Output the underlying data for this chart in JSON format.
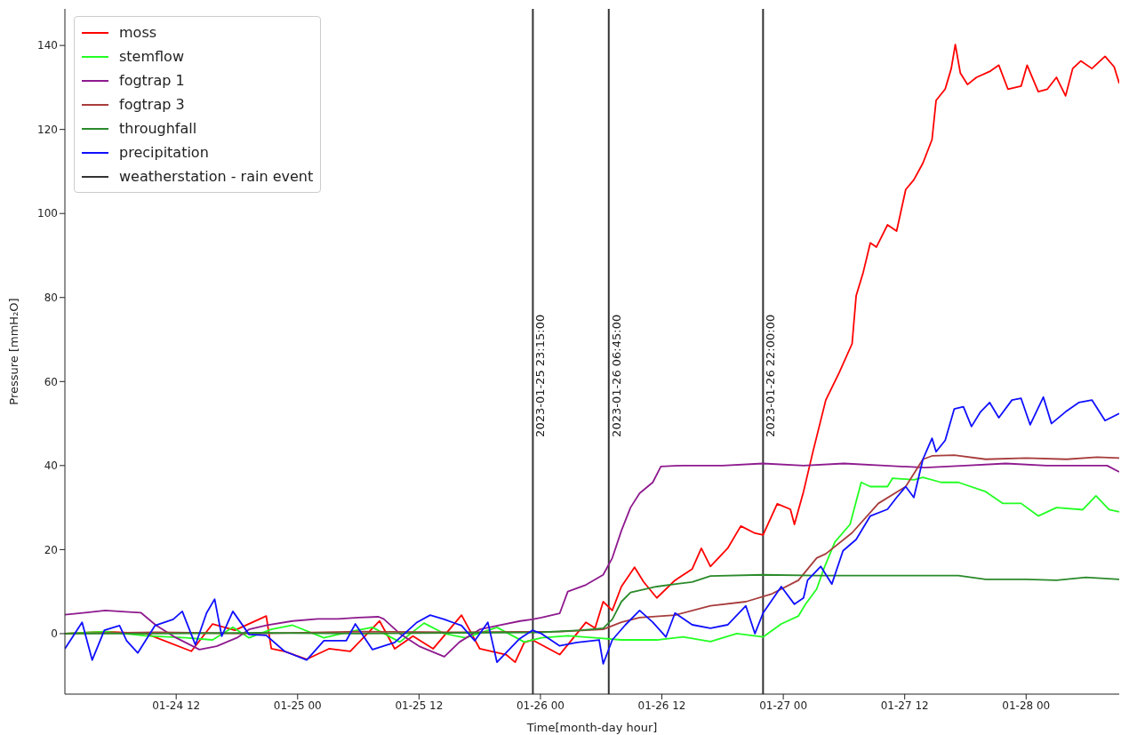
{
  "chart_data": {
    "type": "line",
    "xlabel": "Time[month-day hour]",
    "ylabel": "Pressure [mmH₂O]",
    "xlim": [
      "2023-01-24T01:00",
      "2023-01-28T09:12"
    ],
    "xticks": [
      {
        "value": "2023-01-24T12:00",
        "label": "01-24 12"
      },
      {
        "value": "2023-01-25T00:00",
        "label": "01-25 00"
      },
      {
        "value": "2023-01-25T12:00",
        "label": "01-25 12"
      },
      {
        "value": "2023-01-26T00:00",
        "label": "01-26 00"
      },
      {
        "value": "2023-01-26T12:00",
        "label": "01-26 12"
      },
      {
        "value": "2023-01-27T00:00",
        "label": "01-27 00"
      },
      {
        "value": "2023-01-27T12:00",
        "label": "01-27 12"
      },
      {
        "value": "2023-01-28T00:00",
        "label": "01-28 00"
      }
    ],
    "ylim": [
      -14.4,
      148.7
    ],
    "yticks": [
      0,
      20,
      40,
      60,
      80,
      100,
      120,
      140
    ],
    "legend": "top left",
    "marker": "none",
    "line_style": "solid",
    "series": [
      {
        "name": "moss",
        "color": "#ff0000",
        "x": [
          "2023-01-24T01:00",
          "2023-01-24T05:00",
          "2023-01-24T09:00",
          "2023-01-24T13:30",
          "2023-01-24T15:36",
          "2023-01-24T17:48",
          "2023-01-24T20:54",
          "2023-01-24T21:24",
          "2023-01-24T22:42",
          "2023-01-25T00:54",
          "2023-01-25T03:06",
          "2023-01-25T05:12",
          "2023-01-25T08:06",
          "2023-01-25T09:36",
          "2023-01-25T11:24",
          "2023-01-25T13:24",
          "2023-01-25T16:12",
          "2023-01-25T18:00",
          "2023-01-25T20:36",
          "2023-01-25T21:30",
          "2023-01-25T22:24",
          "2023-01-25T23:12",
          "2023-01-26T01:54",
          "2023-01-26T03:36",
          "2023-01-26T04:30",
          "2023-01-26T05:24",
          "2023-01-26T06:12",
          "2023-01-26T07:06",
          "2023-01-26T08:00",
          "2023-01-26T09:18",
          "2023-01-26T10:12",
          "2023-01-26T11:30",
          "2023-01-26T13:18",
          "2023-01-26T15:00",
          "2023-01-26T15:54",
          "2023-01-26T16:48",
          "2023-01-26T18:30",
          "2023-01-26T19:48",
          "2023-01-26T21:12",
          "2023-01-26T22:00",
          "2023-01-26T23:24",
          "2023-01-27T00:42",
          "2023-01-27T01:06",
          "2023-01-27T02:00",
          "2023-01-27T02:54",
          "2023-01-27T04:12",
          "2023-01-27T05:30",
          "2023-01-27T06:48",
          "2023-01-27T07:12",
          "2023-01-27T07:54",
          "2023-01-27T08:36",
          "2023-01-27T09:12",
          "2023-01-27T10:18",
          "2023-01-27T11:12",
          "2023-01-27T12:06",
          "2023-01-27T12:54",
          "2023-01-27T13:48",
          "2023-01-27T14:42",
          "2023-01-27T15:06",
          "2023-01-27T16:00",
          "2023-01-27T16:36",
          "2023-01-27T17:00",
          "2023-01-27T17:30",
          "2023-01-27T18:12",
          "2023-01-27T19:06",
          "2023-01-27T20:24",
          "2023-01-27T21:18",
          "2023-01-27T22:12",
          "2023-01-27T23:30",
          "2023-01-28T00:06",
          "2023-01-28T01:12",
          "2023-01-28T02:06",
          "2023-01-28T03:00",
          "2023-01-28T03:54",
          "2023-01-28T04:36",
          "2023-01-28T05:24",
          "2023-01-28T06:30",
          "2023-01-28T07:48",
          "2023-01-28T08:42",
          "2023-01-28T09:12"
        ],
        "values": [
          0,
          0.5,
          0,
          -4.2,
          2.3,
          0.8,
          4.2,
          -3.6,
          -4.2,
          -6.1,
          -3.6,
          -4.2,
          3,
          -3.6,
          -0.6,
          -3.6,
          4.4,
          -3.6,
          -5,
          -6.8,
          -2.1,
          -1.5,
          -5,
          0,
          2.7,
          1.3,
          7.6,
          5.5,
          11.2,
          15.8,
          12.3,
          8.5,
          12.7,
          15.4,
          20.3,
          16,
          20.3,
          25.6,
          23.9,
          23.5,
          30.9,
          29.6,
          26,
          33.8,
          43,
          55.6,
          62,
          69,
          80.4,
          86,
          93,
          92,
          97.3,
          95.8,
          105.7,
          108,
          112,
          117.6,
          126.9,
          129.6,
          134.5,
          140.2,
          133.4,
          130.7,
          132.4,
          133.8,
          135.3,
          129.6,
          130.3,
          135.3,
          129,
          129.6,
          132.4,
          128,
          134.5,
          136.3,
          134.5,
          137.4,
          134.9,
          131
        ]
      },
      {
        "name": "stemflow",
        "color": "#22ff22",
        "x": [
          "2023-01-24T01:00",
          "2023-01-24T05:00",
          "2023-01-24T09:00",
          "2023-01-24T13:00",
          "2023-01-24T15:36",
          "2023-01-24T17:36",
          "2023-01-24T19:12",
          "2023-01-24T21:24",
          "2023-01-24T23:30",
          "2023-01-25T02:36",
          "2023-01-25T05:12",
          "2023-01-25T07:24",
          "2023-01-25T10:06",
          "2023-01-25T12:30",
          "2023-01-25T14:30",
          "2023-01-25T16:36",
          "2023-01-25T19:42",
          "2023-01-25T22:24",
          "2023-01-26T00:06",
          "2023-01-26T02:42",
          "2023-01-26T05:24",
          "2023-01-26T08:00",
          "2023-01-26T11:30",
          "2023-01-26T14:06",
          "2023-01-26T16:48",
          "2023-01-26T19:24",
          "2023-01-26T22:00",
          "2023-01-26T23:48",
          "2023-01-27T01:30",
          "2023-01-27T02:12",
          "2023-01-27T03:18",
          "2023-01-27T04:00",
          "2023-01-27T05:06",
          "2023-01-27T06:36",
          "2023-01-27T07:42",
          "2023-01-27T08:36",
          "2023-01-27T10:18",
          "2023-01-27T10:48",
          "2023-01-27T12:54",
          "2023-01-27T13:48",
          "2023-01-27T15:36",
          "2023-01-27T17:18",
          "2023-01-27T20:00",
          "2023-01-27T21:42",
          "2023-01-27T23:30",
          "2023-01-28T01:12",
          "2023-01-28T03:00",
          "2023-01-28T05:36",
          "2023-01-28T06:54",
          "2023-01-28T08:12",
          "2023-01-28T09:12"
        ],
        "values": [
          0,
          0.5,
          -0.5,
          -1,
          -1.5,
          1.5,
          -1,
          1,
          2,
          -1,
          0.5,
          1.5,
          -2,
          2.5,
          0,
          -1,
          1.5,
          -2,
          -1,
          -0.5,
          -1,
          -1.5,
          -1.5,
          -0.8,
          -1.9,
          0,
          -0.8,
          2.3,
          4.2,
          7,
          10.6,
          15.4,
          21.8,
          26,
          36,
          35,
          35,
          37,
          36.6,
          37.2,
          36,
          36,
          33.8,
          31,
          31,
          28,
          30,
          29.5,
          32.8,
          29.5,
          29
        ]
      },
      {
        "name": "fogtrap 1",
        "color": "#8e1a8e",
        "x": [
          "2023-01-24T01:00",
          "2023-01-24T03:00",
          "2023-01-24T05:00",
          "2023-01-24T07:00",
          "2023-01-24T08:30",
          "2023-01-24T10:00",
          "2023-01-24T12:00",
          "2023-01-24T14:18",
          "2023-01-24T16:00",
          "2023-01-24T18:00",
          "2023-01-24T19:12",
          "2023-01-24T21:00",
          "2023-01-24T23:30",
          "2023-01-25T02:00",
          "2023-01-25T04:00",
          "2023-01-25T06:00",
          "2023-01-25T08:00",
          "2023-01-25T08:30",
          "2023-01-25T10:06",
          "2023-01-25T12:00",
          "2023-01-25T14:30",
          "2023-01-25T16:00",
          "2023-01-25T18:00",
          "2023-01-25T20:00",
          "2023-01-25T22:00",
          "2023-01-25T23:12",
          "2023-01-26T00:06",
          "2023-01-26T01:54",
          "2023-01-26T02:42",
          "2023-01-26T04:30",
          "2023-01-26T06:12",
          "2023-01-26T07:06",
          "2023-01-26T08:00",
          "2023-01-26T08:54",
          "2023-01-26T09:48",
          "2023-01-26T11:06",
          "2023-01-26T11:54",
          "2023-01-26T14:00",
          "2023-01-26T18:00",
          "2023-01-26T22:00",
          "2023-01-27T02:00",
          "2023-01-27T06:00",
          "2023-01-27T10:00",
          "2023-01-27T14:00",
          "2023-01-27T18:00",
          "2023-01-27T22:00",
          "2023-01-28T02:00",
          "2023-01-28T06:00",
          "2023-01-28T08:00",
          "2023-01-28T09:12"
        ],
        "values": [
          4.5,
          5,
          5.5,
          5.2,
          5,
          2,
          -1,
          -3.8,
          -3,
          -1,
          1,
          2,
          3,
          3.5,
          3.5,
          3.8,
          4,
          3.5,
          0,
          -3,
          -5.5,
          -2,
          1,
          2,
          3,
          3.4,
          3.8,
          4.8,
          10,
          11.6,
          14,
          18,
          24.5,
          30,
          33.4,
          36,
          39.8,
          40,
          40,
          40.5,
          40,
          40.5,
          40,
          39.5,
          40,
          40.5,
          40,
          40,
          40,
          38.5
        ]
      },
      {
        "name": "fogtrap 3",
        "color": "#a83c3c",
        "x": [
          "2023-01-24T01:00",
          "2023-01-24T10:00",
          "2023-01-24T20:00",
          "2023-01-25T06:00",
          "2023-01-25T16:00",
          "2023-01-26T02:00",
          "2023-01-26T06:12",
          "2023-01-26T08:00",
          "2023-01-26T09:48",
          "2023-01-26T13:18",
          "2023-01-26T16:48",
          "2023-01-26T20:18",
          "2023-01-26T22:54",
          "2023-01-27T01:30",
          "2023-01-27T03:18",
          "2023-01-27T04:12",
          "2023-01-27T06:48",
          "2023-01-27T09:24",
          "2023-01-27T12:06",
          "2023-01-27T13:48",
          "2023-01-27T14:42",
          "2023-01-27T16:54",
          "2023-01-27T20:00",
          "2023-01-28T00:00",
          "2023-01-28T04:00",
          "2023-01-28T07:00",
          "2023-01-28T09:12"
        ],
        "values": [
          0,
          0.3,
          0,
          0.5,
          0.3,
          0.5,
          1,
          2.7,
          3.8,
          4.4,
          6.6,
          7.6,
          9.5,
          12.7,
          18,
          19,
          24,
          31,
          35,
          41.5,
          42.3,
          42.5,
          41.5,
          41.8,
          41.5,
          42,
          41.8
        ]
      },
      {
        "name": "throughfall",
        "color": "#2a8a2a",
        "x": [
          "2023-01-24T01:00",
          "2023-01-24T10:00",
          "2023-01-24T20:00",
          "2023-01-25T06:00",
          "2023-01-25T16:00",
          "2023-01-26T00:00",
          "2023-01-26T04:00",
          "2023-01-26T06:12",
          "2023-01-26T07:06",
          "2023-01-26T08:00",
          "2023-01-26T08:54",
          "2023-01-26T11:30",
          "2023-01-26T15:00",
          "2023-01-26T16:48",
          "2023-01-26T22:00",
          "2023-01-27T03:18",
          "2023-01-27T08:00",
          "2023-01-27T13:00",
          "2023-01-27T17:18",
          "2023-01-27T20:00",
          "2023-01-28T00:00",
          "2023-01-28T03:00",
          "2023-01-28T05:54",
          "2023-01-28T09:12"
        ],
        "values": [
          0,
          0,
          0.2,
          0,
          0.2,
          0.3,
          0.8,
          1.3,
          3.4,
          7.6,
          9.8,
          11.2,
          12.3,
          13.7,
          14,
          13.8,
          13.8,
          13.8,
          13.8,
          12.9,
          12.9,
          12.7,
          13.4,
          12.9
        ]
      },
      {
        "name": "precipitation",
        "color": "#1010ff",
        "x": [
          "2023-01-24T01:00",
          "2023-01-24T02:42",
          "2023-01-24T03:42",
          "2023-01-24T04:54",
          "2023-01-24T06:24",
          "2023-01-24T07:06",
          "2023-01-24T08:12",
          "2023-01-24T09:54",
          "2023-01-24T11:42",
          "2023-01-24T12:36",
          "2023-01-24T13:54",
          "2023-01-24T15:00",
          "2023-01-24T15:48",
          "2023-01-24T16:30",
          "2023-01-24T17:36",
          "2023-01-24T19:12",
          "2023-01-24T20:54",
          "2023-01-24T22:42",
          "2023-01-25T00:54",
          "2023-01-25T02:36",
          "2023-01-25T04:48",
          "2023-01-25T05:42",
          "2023-01-25T07:24",
          "2023-01-25T09:36",
          "2023-01-25T11:48",
          "2023-01-25T13:06",
          "2023-01-25T14:30",
          "2023-01-25T16:12",
          "2023-01-25T17:30",
          "2023-01-25T18:48",
          "2023-01-25T19:42",
          "2023-01-25T21:54",
          "2023-01-25T23:12",
          "2023-01-26T00:06",
          "2023-01-26T01:54",
          "2023-01-26T03:36",
          "2023-01-26T05:48",
          "2023-01-26T06:12",
          "2023-01-26T07:06",
          "2023-01-26T08:24",
          "2023-01-26T09:48",
          "2023-01-26T11:06",
          "2023-01-26T12:24",
          "2023-01-26T13:18",
          "2023-01-26T15:00",
          "2023-01-26T16:48",
          "2023-01-26T18:30",
          "2023-01-26T20:18",
          "2023-01-26T21:12",
          "2023-01-26T22:00",
          "2023-01-26T23:48",
          "2023-01-27T01:06",
          "2023-01-27T02:00",
          "2023-01-27T02:24",
          "2023-01-27T03:42",
          "2023-01-27T04:48",
          "2023-01-27T05:54",
          "2023-01-27T07:12",
          "2023-01-27T08:36",
          "2023-01-27T10:18",
          "2023-01-27T11:12",
          "2023-01-27T12:06",
          "2023-01-27T12:54",
          "2023-01-27T13:48",
          "2023-01-27T14:42",
          "2023-01-27T15:06",
          "2023-01-27T16:00",
          "2023-01-27T16:54",
          "2023-01-27T17:48",
          "2023-01-27T18:36",
          "2023-01-27T19:30",
          "2023-01-27T20:24",
          "2023-01-27T21:18",
          "2023-01-27T22:36",
          "2023-01-27T23:30",
          "2023-01-28T00:24",
          "2023-01-28T01:42",
          "2023-01-28T02:30",
          "2023-01-28T03:54",
          "2023-01-28T05:12",
          "2023-01-28T06:30",
          "2023-01-28T07:48",
          "2023-01-28T09:12"
        ],
        "values": [
          -3.6,
          2.7,
          -6.3,
          0.8,
          1.9,
          -1.7,
          -4.6,
          1.9,
          3.4,
          5.3,
          -2.7,
          4.9,
          8.2,
          -0.6,
          5.3,
          -0.2,
          -0.4,
          -4.2,
          -6.3,
          -1.7,
          -1.7,
          2.3,
          -3.8,
          -2.1,
          2.7,
          4.4,
          3.4,
          1.9,
          -1.7,
          2.7,
          -6.8,
          -1.3,
          0.8,
          0,
          -2.9,
          -2.1,
          -1.5,
          -7.2,
          -1.5,
          2.1,
          5.5,
          2.7,
          -0.8,
          4.9,
          2.1,
          1.3,
          2.1,
          6.6,
          0,
          4.9,
          11.2,
          7,
          8.5,
          12.7,
          16,
          11.8,
          19.7,
          22.4,
          28,
          29.6,
          32.4,
          35,
          32.4,
          41.5,
          46.5,
          43.3,
          46,
          53.5,
          54,
          49.3,
          52.8,
          55,
          51.4,
          55.6,
          56,
          49.7,
          56.3,
          50,
          52.8,
          55,
          55.6,
          50.7,
          52.4
        ]
      },
      {
        "name": "weatherstation - rain event",
        "color": "#333333"
      }
    ],
    "ref_lines": [
      {
        "axis": "x",
        "value": "2023-01-25T23:15",
        "label": "2023-01-25 23:15:00",
        "color": "#333333"
      },
      {
        "axis": "x",
        "value": "2023-01-26T06:45",
        "label": "2023-01-26 06:45:00",
        "color": "#333333"
      },
      {
        "axis": "x",
        "value": "2023-01-26T22:00",
        "label": "2023-01-26 22:00:00",
        "color": "#333333"
      }
    ]
  }
}
